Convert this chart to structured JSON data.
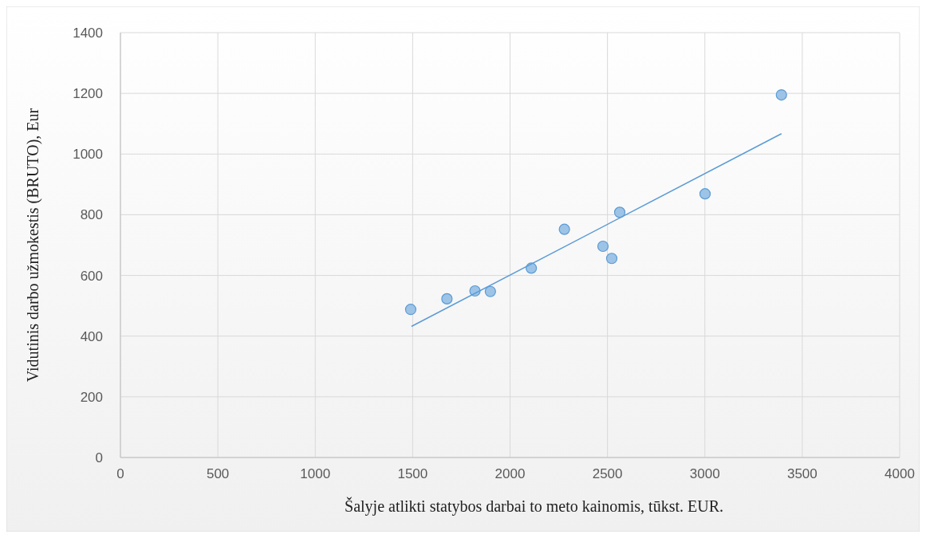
{
  "chart_data": {
    "type": "scatter",
    "xlabel": "Šalyje atlikti statybos darbai to meto kainomis, tūkst. EUR.",
    "ylabel": "Vidutinis darbo užmokestis (BRUTO), Eur",
    "xlim": [
      0,
      4000
    ],
    "xticks": [
      0,
      500,
      1000,
      1500,
      2000,
      2500,
      3000,
      3500,
      4000
    ],
    "ylim": [
      0,
      1400
    ],
    "yticks": [
      0,
      200,
      400,
      600,
      800,
      1000,
      1200,
      1400
    ],
    "grid": true,
    "marker": "circle",
    "series": [
      {
        "color": "#9dc3e6",
        "x": [
          1490,
          1676,
          1820,
          1899,
          2109,
          2279,
          2477,
          2522,
          2563,
          3001,
          3393
        ],
        "values": [
          488,
          523,
          549,
          547,
          624,
          752,
          696,
          656,
          808,
          869,
          1195
        ]
      },
      {
        "type": "line",
        "color": "#5b9bd5",
        "x": [
          1494,
          3393
        ],
        "values": [
          432,
          1067
        ],
        "marker": "none",
        "line_style": "solid"
      }
    ]
  }
}
